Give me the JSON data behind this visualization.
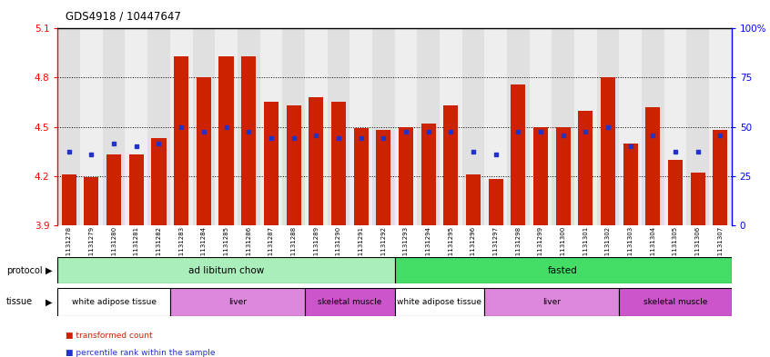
{
  "title": "GDS4918 / 10447647",
  "samples": [
    "GSM1131278",
    "GSM1131279",
    "GSM1131280",
    "GSM1131281",
    "GSM1131282",
    "GSM1131283",
    "GSM1131284",
    "GSM1131285",
    "GSM1131286",
    "GSM1131287",
    "GSM1131288",
    "GSM1131289",
    "GSM1131290",
    "GSM1131291",
    "GSM1131292",
    "GSM1131293",
    "GSM1131294",
    "GSM1131295",
    "GSM1131296",
    "GSM1131297",
    "GSM1131298",
    "GSM1131299",
    "GSM1131300",
    "GSM1131301",
    "GSM1131302",
    "GSM1131303",
    "GSM1131304",
    "GSM1131305",
    "GSM1131306",
    "GSM1131307"
  ],
  "bar_values": [
    4.21,
    4.19,
    4.33,
    4.33,
    4.43,
    4.93,
    4.8,
    4.93,
    4.93,
    4.65,
    4.63,
    4.68,
    4.65,
    4.49,
    4.48,
    4.5,
    4.52,
    4.63,
    4.21,
    4.18,
    4.76,
    4.5,
    4.5,
    4.6,
    4.8,
    4.4,
    4.62,
    4.3,
    4.22,
    4.48
  ],
  "percentile_values": [
    4.35,
    4.33,
    4.4,
    4.38,
    4.4,
    4.5,
    4.47,
    4.5,
    4.47,
    4.43,
    4.43,
    4.45,
    4.43,
    4.43,
    4.43,
    4.47,
    4.47,
    4.47,
    4.35,
    4.33,
    4.47,
    4.47,
    4.45,
    4.47,
    4.5,
    4.38,
    4.45,
    4.35,
    4.35,
    4.45
  ],
  "ylim_left": [
    3.9,
    5.1
  ],
  "yticks_left": [
    3.9,
    4.2,
    4.5,
    4.8,
    5.1
  ],
  "yticks_right": [
    0,
    25,
    50,
    75,
    100
  ],
  "ytick_labels_right": [
    "0",
    "25",
    "50",
    "75",
    "100%"
  ],
  "bar_color": "#cc2200",
  "percentile_color": "#2233cc",
  "bar_width": 0.65,
  "col_bg_even": "#e0e0e0",
  "col_bg_odd": "#eeeeee",
  "protocol_groups": [
    {
      "label": "ad libitum chow",
      "start": 0,
      "end": 15,
      "color": "#aaeebb"
    },
    {
      "label": "fasted",
      "start": 15,
      "end": 30,
      "color": "#44dd66"
    }
  ],
  "tissue_groups": [
    {
      "label": "white adipose tissue",
      "start": 0,
      "end": 5,
      "color": "#ffffff"
    },
    {
      "label": "liver",
      "start": 5,
      "end": 11,
      "color": "#dd88dd"
    },
    {
      "label": "skeletal muscle",
      "start": 11,
      "end": 15,
      "color": "#cc55cc"
    },
    {
      "label": "white adipose tissue",
      "start": 15,
      "end": 19,
      "color": "#ffffff"
    },
    {
      "label": "liver",
      "start": 19,
      "end": 25,
      "color": "#dd88dd"
    },
    {
      "label": "skeletal muscle",
      "start": 25,
      "end": 30,
      "color": "#cc55cc"
    }
  ],
  "legend_items": [
    {
      "label": "transformed count",
      "color": "#cc2200",
      "marker": "s"
    },
    {
      "label": "percentile rank within the sample",
      "color": "#2233cc",
      "marker": "s"
    }
  ],
  "grid_lines": [
    4.2,
    4.5,
    4.8
  ]
}
